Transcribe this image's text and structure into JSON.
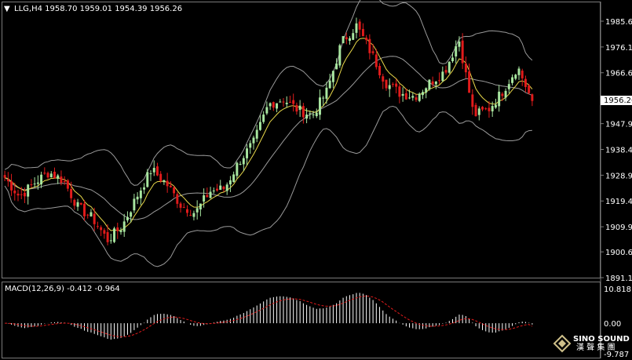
{
  "header": {
    "symbol_line": "LLG,H4  1958.70 1959.01 1954.39 1956.26",
    "dropdown_glyph": "▼"
  },
  "macd": {
    "label": "MACD(12,26,9) -0.412 -0.964"
  },
  "watermark": {
    "line1": "SINO SOUND",
    "line2": "漢 聲 集 團"
  },
  "colors": {
    "background": "#000000",
    "bull_candle": "#a8e6a0",
    "bear_candle": "#e11b1b",
    "bollinger": "#9a9a9a",
    "moving_average": "#e8d84a",
    "macd_histogram": "#ffffff",
    "macd_signal": "#e11b1b",
    "current_price_box": "#ffffff"
  },
  "chart_data": [
    {
      "type": "candlestick",
      "symbol": "LLG",
      "timeframe": "H4",
      "ohlc_current": {
        "open": 1958.7,
        "high": 1959.01,
        "low": 1954.39,
        "close": 1956.26
      },
      "current_price_label": "1956.26",
      "price_ticks": [
        "1985.65",
        "1976.15",
        "1966.65",
        "1947.90",
        "1938.40",
        "1928.90",
        "1919.40",
        "1909.90",
        "1900.65",
        "1891.15"
      ],
      "ylim": [
        1891.15,
        1985.65
      ],
      "overlays": [
        "Bollinger Bands",
        "Moving Average"
      ],
      "close_path_approx": [
        1928,
        1921,
        1926,
        1930,
        1927,
        1917,
        1913,
        1905,
        1910,
        1921,
        1931,
        1926,
        1918,
        1915,
        1923,
        1924,
        1934,
        1941,
        1955,
        1957,
        1953,
        1951,
        1960,
        1978,
        1984,
        1974,
        1963,
        1959,
        1958,
        1963,
        1967,
        1979,
        1951,
        1953,
        1960,
        1969,
        1956
      ]
    },
    {
      "type": "line",
      "indicator": "MACD",
      "params": "12,26,9",
      "main_value": -0.412,
      "signal_value": -0.964,
      "y_ticks": [
        "10.818",
        "0.00",
        "-9.787"
      ],
      "ylim": [
        -9.787,
        10.818
      ]
    }
  ]
}
